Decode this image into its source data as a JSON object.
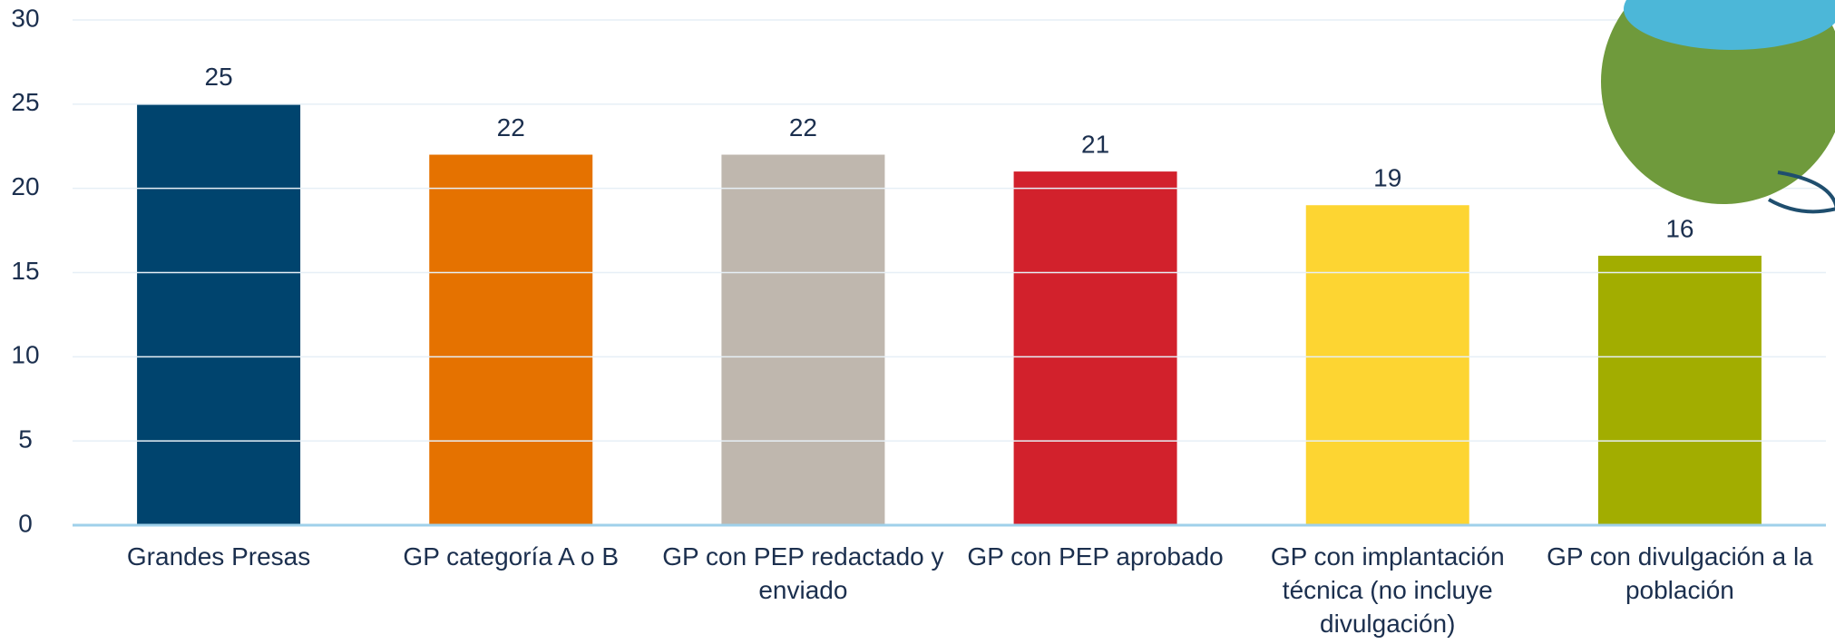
{
  "chart_data": {
    "type": "bar",
    "categories": [
      "Grandes Presas",
      "GP categoría A o B",
      "GP con PEP redactado y enviado",
      "GP con PEP aprobado",
      "GP con implantación técnica (no incluye divulgación)",
      "GP con divulgación a la población"
    ],
    "values": [
      25,
      22,
      22,
      21,
      19,
      16
    ],
    "colors": [
      "#00446e",
      "#e57200",
      "#bfb7ae",
      "#d2212c",
      "#fdd532",
      "#a2ad00"
    ],
    "ylim": [
      0,
      30
    ],
    "yticks": [
      0,
      5,
      10,
      15,
      20,
      25,
      30
    ],
    "grid": true
  }
}
